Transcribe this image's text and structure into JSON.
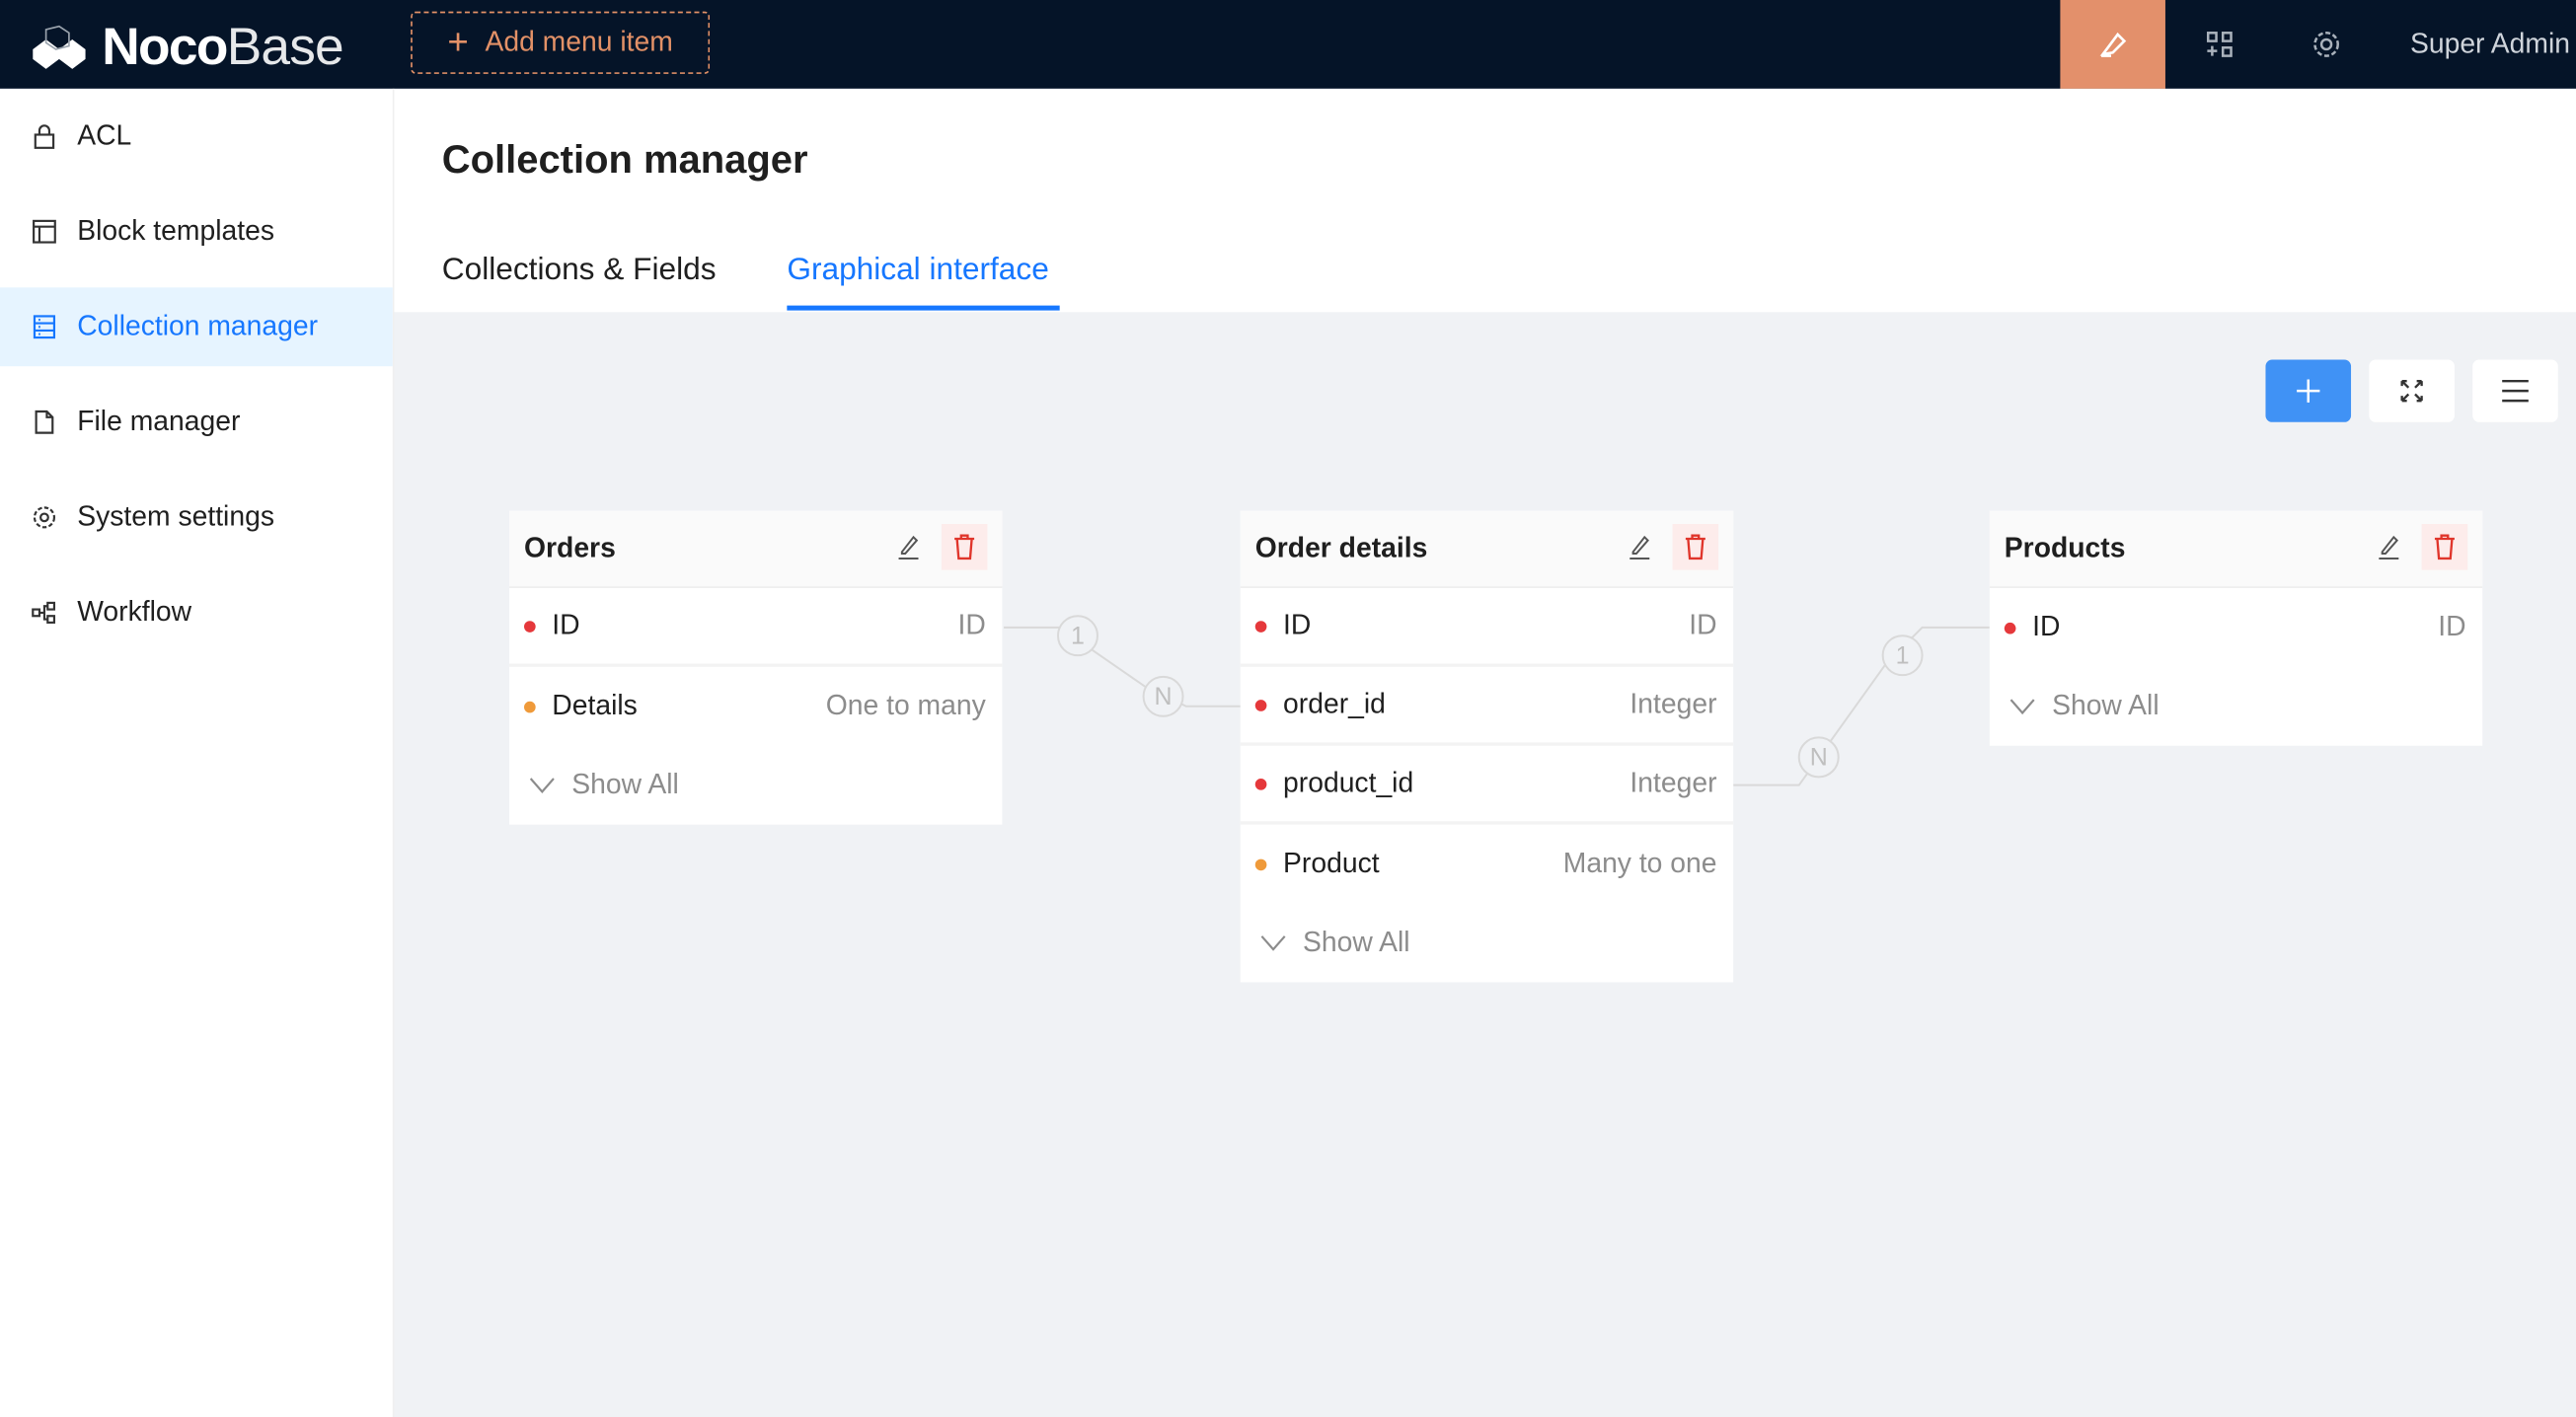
{
  "header": {
    "logo": {
      "bold": "Noco",
      "light": "Base"
    },
    "add_menu_item": "Add menu item",
    "user": "Super Admin",
    "accent": "#e3906b"
  },
  "sidebar": {
    "items": [
      {
        "label": "ACL",
        "icon": "lock-icon"
      },
      {
        "label": "Block templates",
        "icon": "layout-icon"
      },
      {
        "label": "Collection manager",
        "icon": "database-icon",
        "active": true
      },
      {
        "label": "File manager",
        "icon": "file-icon"
      },
      {
        "label": "System settings",
        "icon": "gear-icon"
      },
      {
        "label": "Workflow",
        "icon": "workflow-icon"
      }
    ]
  },
  "page": {
    "title": "Collection manager",
    "tabs": [
      {
        "label": "Collections & Fields"
      },
      {
        "label": "Graphical interface",
        "active": true
      }
    ]
  },
  "collections": [
    {
      "title": "Orders",
      "fields": [
        {
          "name": "ID",
          "type": "ID",
          "color": "#e5383b"
        },
        {
          "name": "Details",
          "type": "One to many",
          "color": "#ef9a3a"
        }
      ],
      "show_all": "Show All"
    },
    {
      "title": "Order details",
      "fields": [
        {
          "name": "ID",
          "type": "ID",
          "color": "#e5383b"
        },
        {
          "name": "order_id",
          "type": "Integer",
          "color": "#e5383b"
        },
        {
          "name": "product_id",
          "type": "Integer",
          "color": "#e5383b"
        },
        {
          "name": "Product",
          "type": "Many to one",
          "color": "#ef9a3a"
        }
      ],
      "show_all": "Show All"
    },
    {
      "title": "Products",
      "fields": [
        {
          "name": "ID",
          "type": "ID",
          "color": "#e5383b"
        }
      ],
      "show_all": "Show All"
    }
  ],
  "relations": [
    {
      "from": "1",
      "to": "N"
    },
    {
      "from": "N",
      "to": "1"
    }
  ]
}
